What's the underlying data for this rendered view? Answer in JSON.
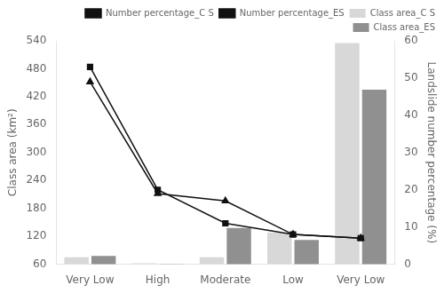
{
  "chart_data": {
    "type": "bar",
    "categories": [
      "Very Low",
      "High",
      "Moderate",
      "Low",
      "Very Low"
    ],
    "series": [
      {
        "name": "Class area_C S",
        "type": "bar",
        "color": "#d8d8d8",
        "values": [
          75,
          62,
          75,
          128,
          535
        ]
      },
      {
        "name": "Class area_ES",
        "type": "bar",
        "color": "#909090",
        "values": [
          78,
          60,
          138,
          112,
          435
        ]
      },
      {
        "name": "Number percentage_C S",
        "type": "line",
        "color": "#111111",
        "marker": "square",
        "axis": "y2",
        "values": [
          53,
          20,
          11,
          8,
          7
        ]
      },
      {
        "name": "Number percentage_ES",
        "type": "line",
        "color": "#111111",
        "marker": "triangle",
        "axis": "y2",
        "values": [
          49,
          19,
          17,
          8,
          7
        ]
      }
    ],
    "ylabel": "Class area (km²)",
    "y2label": "Landslide number percentage (%)",
    "ylim": [
      60,
      540
    ],
    "yticks": [
      60,
      120,
      180,
      240,
      300,
      360,
      420,
      480,
      540
    ],
    "y2lim": [
      0,
      60
    ],
    "y2ticks": [
      0,
      10,
      20,
      30,
      40,
      50,
      60
    ],
    "grid": false,
    "legend": "upper right"
  }
}
